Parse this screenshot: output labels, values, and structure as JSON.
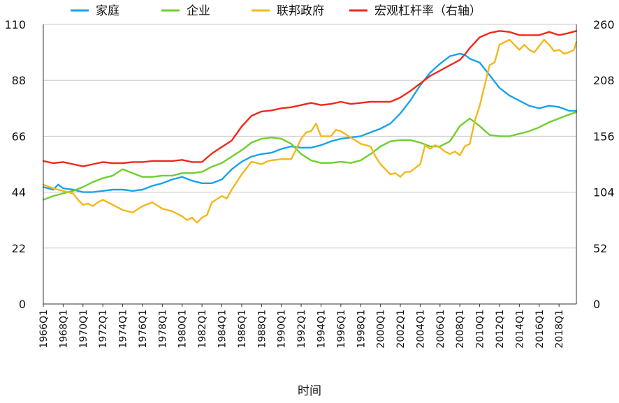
{
  "chart_data": {
    "type": "line",
    "xlabel": "时间",
    "x_tick_labels": [
      "1966Q1",
      "1968Q1",
      "1970Q1",
      "1972Q1",
      "1974Q1",
      "1976Q1",
      "1978Q1",
      "1980Q1",
      "1982Q1",
      "1984Q1",
      "1986Q1",
      "1988Q1",
      "1990Q1",
      "1992Q1",
      "1994Q1",
      "1996Q1",
      "1998Q1",
      "2000Q1",
      "2002Q1",
      "2004Q1",
      "2006Q1",
      "2008Q1",
      "2010Q1",
      "2012Q1",
      "2014Q1",
      "2016Q1",
      "2018Q1"
    ],
    "x_range": [
      1966.0,
      2019.75
    ],
    "y_left": {
      "ticks": [
        0,
        22,
        44,
        66,
        88,
        110
      ],
      "range": [
        0,
        110
      ]
    },
    "y_right": {
      "ticks": [
        0,
        52,
        104,
        156,
        208,
        260
      ],
      "range": [
        0,
        260
      ]
    },
    "legend_position": "top",
    "grid": "horizontal",
    "series": [
      {
        "name": "家庭",
        "color": "#1aa3e8",
        "axis": "left",
        "x": [
          1966.0,
          1967.0,
          1967.5,
          1968.0,
          1969.0,
          1970.0,
          1971.0,
          1972.0,
          1973.0,
          1974.0,
          1975.0,
          1976.0,
          1977.0,
          1978.0,
          1979.0,
          1980.0,
          1981.0,
          1982.0,
          1983.0,
          1984.0,
          1985.0,
          1986.0,
          1987.0,
          1988.0,
          1989.0,
          1990.0,
          1991.0,
          1992.0,
          1993.0,
          1994.0,
          1995.0,
          1996.0,
          1997.0,
          1998.0,
          1999.0,
          2000.0,
          2001.0,
          2002.0,
          2003.0,
          2004.0,
          2005.0,
          2006.0,
          2007.0,
          2008.0,
          2008.5,
          2009.0,
          2010.0,
          2011.0,
          2012.0,
          2013.0,
          2014.0,
          2015.0,
          2016.0,
          2017.0,
          2018.0,
          2019.0,
          2019.75
        ],
        "y": [
          46.0,
          45.0,
          47.0,
          45.5,
          45.0,
          44.0,
          44.0,
          44.5,
          45.0,
          45.0,
          44.5,
          45.0,
          46.5,
          47.5,
          49.0,
          50.0,
          48.5,
          47.5,
          47.5,
          49.0,
          53.0,
          56.0,
          58.0,
          59.0,
          59.5,
          61.0,
          62.0,
          61.5,
          61.5,
          62.5,
          64.0,
          65.0,
          65.5,
          66.0,
          67.5,
          69.0,
          71.0,
          75.0,
          80.0,
          86.0,
          91.0,
          94.5,
          97.5,
          98.5,
          98.0,
          96.5,
          95.0,
          90.0,
          85.0,
          82.0,
          80.0,
          78.0,
          77.0,
          78.0,
          77.5,
          76.0,
          76.0
        ]
      },
      {
        "name": "企业",
        "color": "#6fcf2e",
        "axis": "left",
        "x": [
          1966.0,
          1967.0,
          1968.0,
          1969.0,
          1970.0,
          1971.0,
          1972.0,
          1973.0,
          1974.0,
          1975.0,
          1976.0,
          1977.0,
          1978.0,
          1979.0,
          1980.0,
          1981.0,
          1982.0,
          1983.0,
          1984.0,
          1985.0,
          1986.0,
          1987.0,
          1988.0,
          1989.0,
          1990.0,
          1991.0,
          1992.0,
          1993.0,
          1994.0,
          1995.0,
          1996.0,
          1997.0,
          1998.0,
          1999.0,
          2000.0,
          2001.0,
          2002.0,
          2003.0,
          2004.0,
          2005.0,
          2006.0,
          2007.0,
          2008.0,
          2009.0,
          2010.0,
          2011.0,
          2012.0,
          2013.0,
          2014.0,
          2015.0,
          2016.0,
          2017.0,
          2018.0,
          2019.0,
          2019.75
        ],
        "y": [
          41.0,
          42.5,
          43.5,
          44.5,
          46.0,
          48.0,
          49.5,
          50.5,
          53.0,
          51.5,
          50.0,
          50.0,
          50.5,
          50.5,
          51.5,
          51.5,
          52.0,
          54.0,
          55.5,
          58.0,
          60.5,
          63.5,
          65.0,
          65.5,
          65.0,
          63.0,
          59.0,
          56.5,
          55.5,
          55.5,
          56.0,
          55.5,
          56.5,
          59.0,
          62.0,
          64.0,
          64.5,
          64.5,
          63.5,
          62.0,
          62.0,
          64.0,
          70.0,
          73.0,
          70.0,
          66.5,
          66.0,
          66.0,
          67.0,
          68.0,
          69.5,
          71.5,
          73.0,
          74.5,
          75.5
        ]
      },
      {
        "name": "联邦政府",
        "color": "#f2b81c",
        "axis": "left",
        "x": [
          1966.0,
          1967.0,
          1968.0,
          1969.0,
          1969.5,
          1970.0,
          1970.5,
          1971.0,
          1971.5,
          1972.0,
          1973.0,
          1974.0,
          1975.0,
          1976.0,
          1977.0,
          1978.0,
          1979.0,
          1980.0,
          1980.5,
          1981.0,
          1981.5,
          1982.0,
          1982.5,
          1983.0,
          1984.0,
          1984.5,
          1985.0,
          1986.0,
          1987.0,
          1988.0,
          1988.5,
          1989.0,
          1990.0,
          1991.0,
          1992.0,
          1992.5,
          1993.0,
          1993.5,
          1994.0,
          1995.0,
          1995.5,
          1996.0,
          1997.0,
          1998.0,
          1999.0,
          1999.5,
          2000.0,
          2001.0,
          2001.5,
          2002.0,
          2002.5,
          2003.0,
          2004.0,
          2004.5,
          2005.0,
          2005.5,
          2006.0,
          2006.5,
          2007.0,
          2007.5,
          2008.0,
          2008.5,
          2009.0,
          2009.5,
          2010.0,
          2010.5,
          2011.0,
          2011.5,
          2012.0,
          2012.5,
          2013.0,
          2014.0,
          2014.5,
          2015.0,
          2015.5,
          2016.0,
          2016.5,
          2017.0,
          2017.5,
          2018.0,
          2018.5,
          2019.0,
          2019.5,
          2019.75
        ],
        "y": [
          47.0,
          45.5,
          44.5,
          43.5,
          41.0,
          39.0,
          39.5,
          38.5,
          40.0,
          41.0,
          39.0,
          37.0,
          36.0,
          38.5,
          40.0,
          37.5,
          36.5,
          34.5,
          33.0,
          34.0,
          32.0,
          34.0,
          35.0,
          40.0,
          42.5,
          41.5,
          45.0,
          51.0,
          56.0,
          55.0,
          56.0,
          56.5,
          57.0,
          57.0,
          65.0,
          67.5,
          68.0,
          71.0,
          66.0,
          66.0,
          68.5,
          68.0,
          65.5,
          63.0,
          62.0,
          58.0,
          55.0,
          51.0,
          51.5,
          50.0,
          52.0,
          52.0,
          55.0,
          62.5,
          61.0,
          62.5,
          61.5,
          60.0,
          59.0,
          60.0,
          58.5,
          62.0,
          63.0,
          72.0,
          78.0,
          86.0,
          94.0,
          95.0,
          102.0,
          103.0,
          104.0,
          100.0,
          102.0,
          100.0,
          99.0,
          101.5,
          104.0,
          102.0,
          99.5,
          100.0,
          98.5,
          99.0,
          100.0,
          103.0
        ]
      },
      {
        "name": "宏观杠杆率（右轴）",
        "color": "#ee2a1a",
        "axis": "right",
        "x": [
          1966.0,
          1967.0,
          1968.0,
          1969.0,
          1970.0,
          1971.0,
          1972.0,
          1973.0,
          1974.0,
          1975.0,
          1976.0,
          1977.0,
          1978.0,
          1979.0,
          1980.0,
          1981.0,
          1982.0,
          1983.0,
          1984.0,
          1985.0,
          1986.0,
          1987.0,
          1988.0,
          1989.0,
          1990.0,
          1991.0,
          1992.0,
          1993.0,
          1994.0,
          1995.0,
          1996.0,
          1997.0,
          1998.0,
          1999.0,
          2000.0,
          2001.0,
          2002.0,
          2003.0,
          2004.0,
          2005.0,
          2006.0,
          2007.0,
          2008.0,
          2008.5,
          2009.0,
          2010.0,
          2011.0,
          2012.0,
          2013.0,
          2014.0,
          2015.0,
          2016.0,
          2017.0,
          2018.0,
          2019.0,
          2019.75
        ],
        "y": [
          133.0,
          131.0,
          132.0,
          130.0,
          128.0,
          130.0,
          132.0,
          131.0,
          131.0,
          132.0,
          132.0,
          133.0,
          133.0,
          133.0,
          134.0,
          132.0,
          132.0,
          140.0,
          146.0,
          152.0,
          165.0,
          175.0,
          179.0,
          180.0,
          182.0,
          183.0,
          185.0,
          187.0,
          185.0,
          186.0,
          188.0,
          186.0,
          187.0,
          188.0,
          188.0,
          188.0,
          192.0,
          198.0,
          205.0,
          212.0,
          217.0,
          222.0,
          227.0,
          232.0,
          238.0,
          248.0,
          252.0,
          254.0,
          253.0,
          250.0,
          250.0,
          250.0,
          253.0,
          250.0,
          252.0,
          254.0
        ]
      }
    ]
  }
}
